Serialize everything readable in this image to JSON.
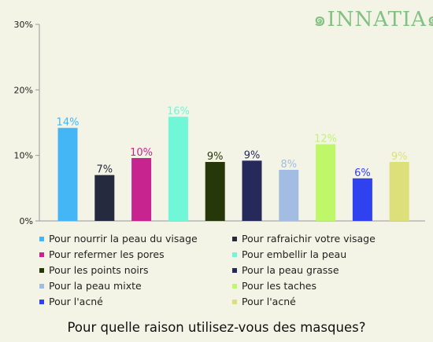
{
  "logo_text": "INNATIA",
  "colors": {
    "background": "#f4f4e6",
    "axis": "#999999",
    "logo": "#82c083"
  },
  "chart_data": {
    "type": "bar",
    "title": "Pour quelle raison utilisez-vous des masques?",
    "xlabel": "",
    "ylabel": "",
    "ylim": [
      0,
      30
    ],
    "yticks": [
      0,
      10,
      20,
      30
    ],
    "ytick_labels": [
      "0%",
      "10%",
      "20%",
      "30%"
    ],
    "grid": false,
    "legend_position": "bottom",
    "categories": [
      "Pour nourrir la peau du visage",
      "Pour rafraichir votre visage",
      "Pour refermer les pores",
      "Pour embellir la peau",
      "Pour les points noirs",
      "Pour la peau grasse",
      "Pour la peau mixte",
      "Pour les taches",
      "Pour l'acné",
      "Pour l'acné"
    ],
    "values": [
      14.2,
      7.0,
      9.6,
      15.9,
      9.0,
      9.2,
      7.8,
      11.7,
      6.5,
      9.0
    ],
    "data_labels": [
      "14%",
      "7%",
      "10%",
      "16%",
      "9%",
      "9%",
      "8%",
      "12%",
      "6%",
      "9%"
    ],
    "bar_colors": [
      "#44b6f5",
      "#252a3e",
      "#c8248f",
      "#6ff7d8",
      "#26380a",
      "#252a5a",
      "#a2bde1",
      "#bef768",
      "#3041f0",
      "#dde07a"
    ],
    "label_colors": [
      "#44b6f5",
      "#252a3e",
      "#c8248f",
      "#6ff7d8",
      "#26380a",
      "#252a5a",
      "#a2bde1",
      "#bef768",
      "#3041f0",
      "#dde07a"
    ]
  }
}
